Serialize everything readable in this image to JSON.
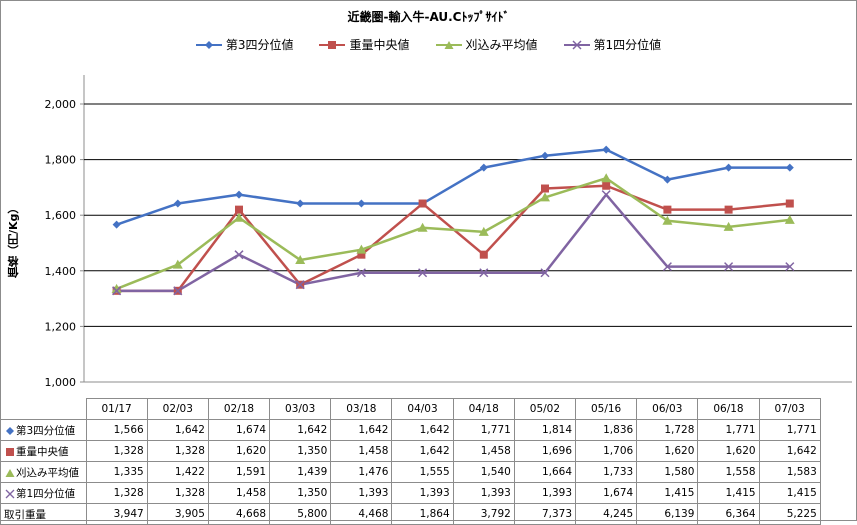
{
  "chart_data": {
    "type": "line",
    "title": "近畿圏-輸入牛-AU.Cﾄｯﾌﾟｻｲﾄﾞ",
    "ylabel": "価格（円/Kg）",
    "ylim": [
      1000,
      2000
    ],
    "yticks": [
      "1,000",
      "1,200",
      "1,400",
      "1,600",
      "1,800",
      "2,000"
    ],
    "ytick_values": [
      1000,
      1200,
      1400,
      1600,
      1800,
      2000
    ],
    "categories": [
      "01/17",
      "02/03",
      "02/18",
      "03/03",
      "03/18",
      "04/03",
      "04/18",
      "05/02",
      "05/16",
      "06/03",
      "06/18",
      "07/03"
    ],
    "grid": true,
    "legend_position": "top",
    "series": [
      {
        "name": "第3四分位値",
        "color": "#4472C4",
        "marker": "diamond",
        "values": [
          1566,
          1642,
          1674,
          1642,
          1642,
          1642,
          1771,
          1814,
          1836,
          1728,
          1771,
          1771
        ],
        "labels": [
          "1,566",
          "1,642",
          "1,674",
          "1,642",
          "1,642",
          "1,642",
          "1,771",
          "1,814",
          "1,836",
          "1,728",
          "1,771",
          "1,771"
        ]
      },
      {
        "name": "重量中央値",
        "color": "#C0504D",
        "marker": "square",
        "values": [
          1328,
          1328,
          1620,
          1350,
          1458,
          1642,
          1458,
          1696,
          1706,
          1620,
          1620,
          1642
        ],
        "labels": [
          "1,328",
          "1,328",
          "1,620",
          "1,350",
          "1,458",
          "1,642",
          "1,458",
          "1,696",
          "1,706",
          "1,620",
          "1,620",
          "1,642"
        ]
      },
      {
        "name": "刈込み平均値",
        "color": "#9BBB59",
        "marker": "triangle",
        "values": [
          1335,
          1422,
          1591,
          1439,
          1476,
          1555,
          1540,
          1664,
          1733,
          1580,
          1558,
          1583
        ],
        "labels": [
          "1,335",
          "1,422",
          "1,591",
          "1,439",
          "1,476",
          "1,555",
          "1,540",
          "1,664",
          "1,733",
          "1,580",
          "1,558",
          "1,583"
        ]
      },
      {
        "name": "第1四分位値",
        "color": "#8064A2",
        "marker": "x",
        "values": [
          1328,
          1328,
          1458,
          1350,
          1393,
          1393,
          1393,
          1393,
          1674,
          1415,
          1415,
          1415
        ],
        "labels": [
          "1,328",
          "1,328",
          "1,458",
          "1,350",
          "1,393",
          "1,393",
          "1,393",
          "1,393",
          "1,674",
          "1,415",
          "1,415",
          "1,415"
        ]
      }
    ],
    "table_extra_row": {
      "name": "取引重量",
      "values": [
        3947,
        3905,
        4668,
        5800,
        4468,
        1864,
        3792,
        7373,
        4245,
        6139,
        6364,
        5225
      ],
      "labels": [
        "3,947",
        "3,905",
        "4,668",
        "5,800",
        "4,468",
        "1,864",
        "3,792",
        "7,373",
        "4,245",
        "6,139",
        "6,364",
        "5,225"
      ]
    }
  }
}
